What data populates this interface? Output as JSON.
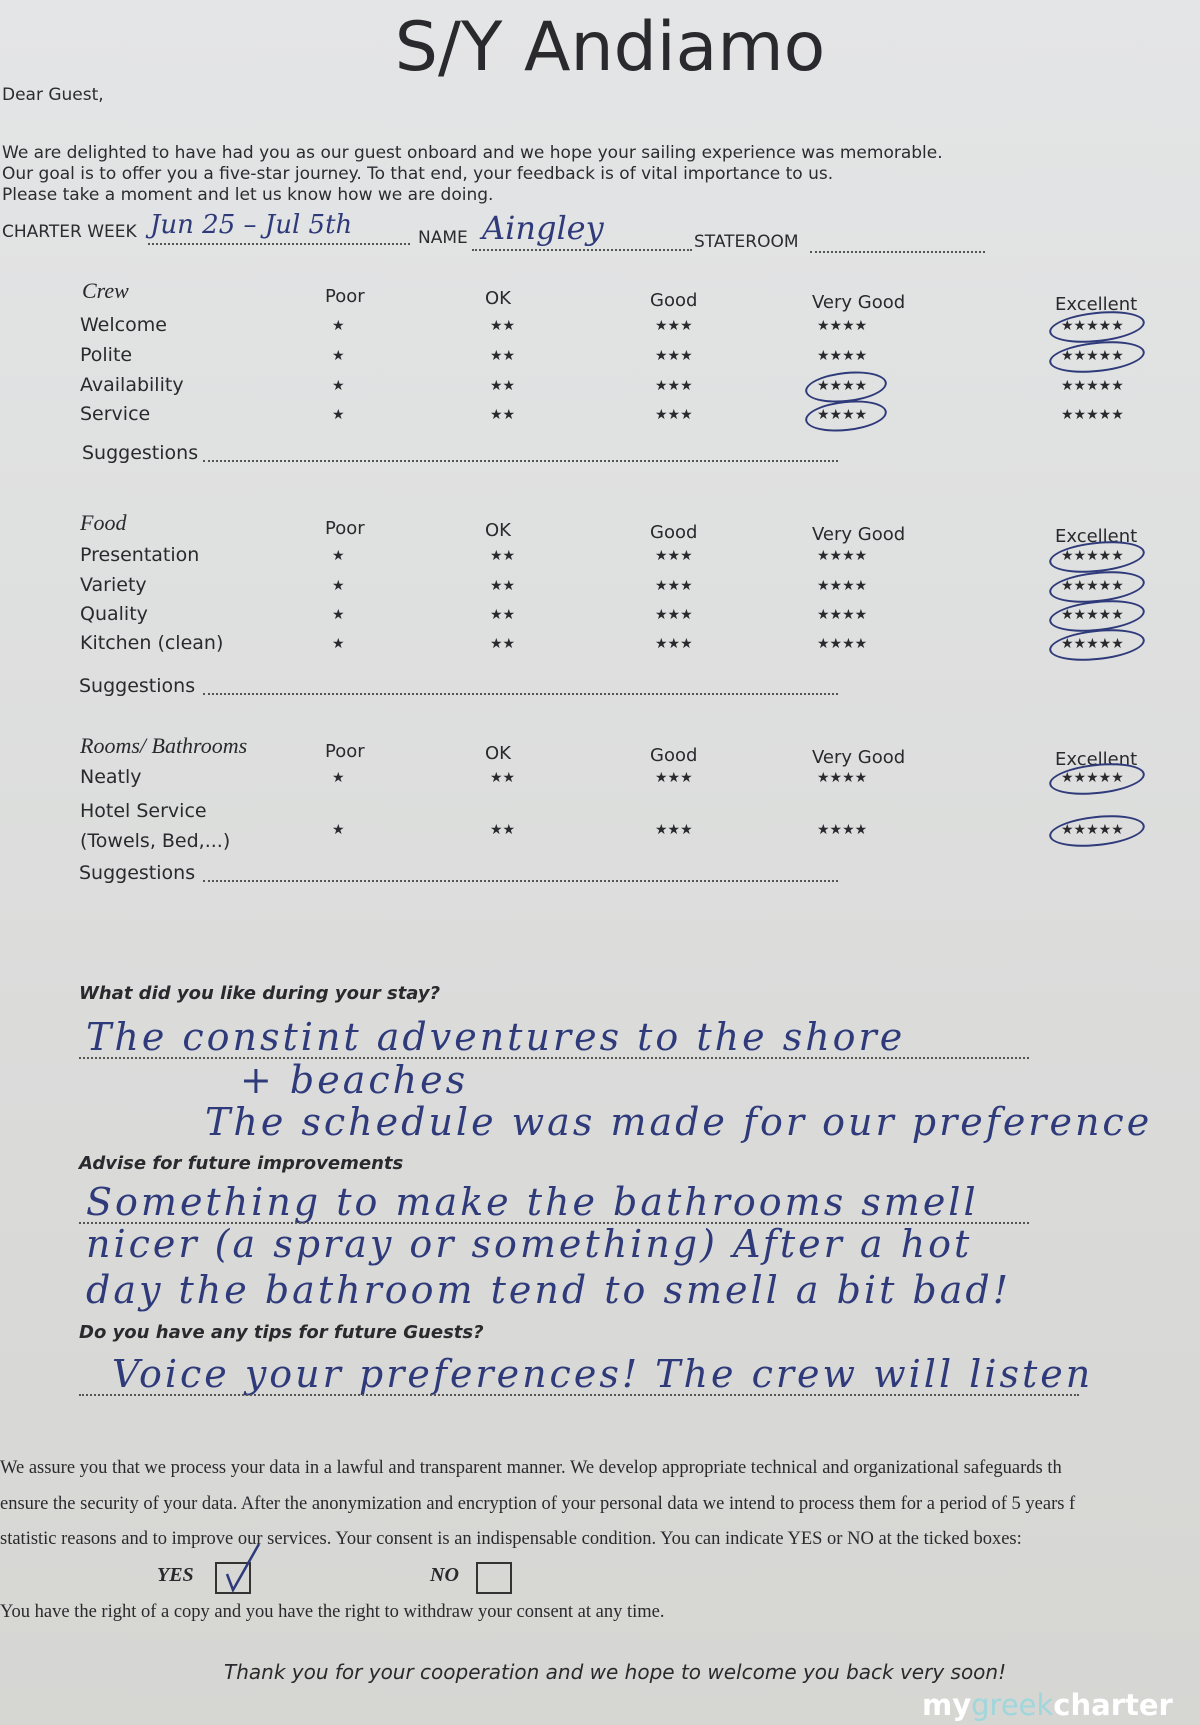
{
  "title": "S/Y Andiamo",
  "greeting": "Dear Guest,",
  "intro": [
    "We are delighted to have had you as our guest onboard and we hope your sailing experience was memorable.",
    "Our goal is to offer you a five-star journey. To that end, your feedback is of vital importance to us.",
    "Please take a moment and let us know how we are doing."
  ],
  "fields": {
    "charter_week_label": "CHARTER WEEK",
    "charter_week_value": "Jun 25 – Jul 5th",
    "name_label": "NAME",
    "name_value": "Aingley",
    "stateroom_label": "STATEROOM",
    "stateroom_value": ""
  },
  "rating_columns": [
    {
      "label": "Poor",
      "stars": "★"
    },
    {
      "label": "OK",
      "stars": "★★"
    },
    {
      "label": "Good",
      "stars": "★★★"
    },
    {
      "label": "Very Good",
      "stars": "★★★★"
    },
    {
      "label": "Excellent",
      "stars": "★★★★★"
    }
  ],
  "sections": [
    {
      "title": "Crew",
      "suggestions_label": "Suggestions",
      "rows": [
        {
          "label": "Welcome",
          "selected": "Excellent"
        },
        {
          "label": "Polite",
          "selected": "Excellent"
        },
        {
          "label": "Availability",
          "selected": "Very Good"
        },
        {
          "label": "Service",
          "selected": "Very Good"
        }
      ]
    },
    {
      "title": "Food",
      "suggestions_label": "Suggestions",
      "rows": [
        {
          "label": "Presentation",
          "selected": "Excellent"
        },
        {
          "label": "Variety",
          "selected": "Excellent"
        },
        {
          "label": "Quality",
          "selected": "Excellent"
        },
        {
          "label": "Kitchen (clean)",
          "selected": "Excellent"
        }
      ]
    },
    {
      "title": "Rooms/ Bathrooms",
      "suggestions_label": "Suggestions",
      "rows": [
        {
          "label": "Neatly",
          "selected": "Excellent"
        },
        {
          "label": "Hotel Service\n(Towels, Bed,...)",
          "selected": "Excellent"
        }
      ]
    }
  ],
  "questions": [
    {
      "label": "What did you like during your stay?",
      "answer": [
        "The constint adventures to the shore",
        "+ beaches",
        "The schedule was made for our preference"
      ]
    },
    {
      "label": "Advise for future improvements",
      "answer": [
        "Something to make the bathrooms smell",
        "nicer (a spray or something) After a hot",
        "day the bathroom tend to smell a bit bad!"
      ]
    },
    {
      "label": "Do you have any tips for future Guests?",
      "answer": [
        "Voice your preferences! The crew will listen"
      ]
    }
  ],
  "privacy": {
    "text": [
      "We assure you that we process your data in a lawful and transparent manner. We develop appropriate technical and organizational safeguards th",
      "ensure the security of your data. After the anonymization and encryption of your personal data we intend to process them for a period of 5 years f",
      "statistic reasons and to improve our services. Your consent is an indispensable condition. You can indicate YES or NO at the ticked boxes:"
    ],
    "yes_label": "YES",
    "no_label": "NO",
    "yes_checked": true,
    "no_checked": false,
    "rights": "You have the right of a copy and you have the right to withdraw your consent at any time."
  },
  "closing": "Thank you for your cooperation and we hope to welcome you back very soon!",
  "watermark": {
    "my": "my",
    "greek": "greek",
    "charter": "charter",
    "accent": "#9fd7dc"
  }
}
